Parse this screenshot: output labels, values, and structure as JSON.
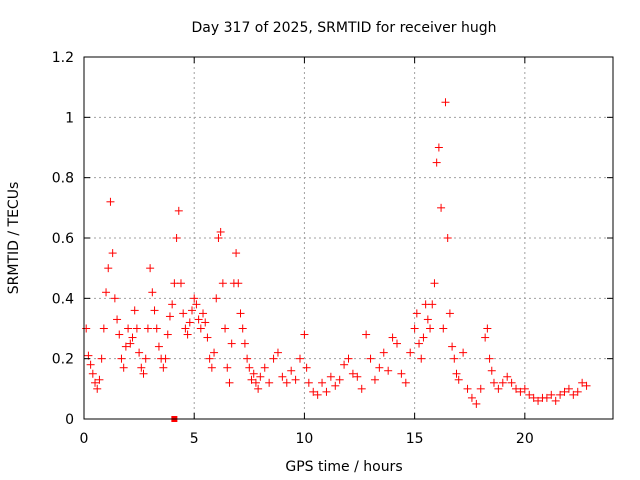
{
  "chart_data": {
    "type": "scatter",
    "title": "Day 317 of 2025, SRMTID for receiver hugh",
    "xlabel": "GPS time / hours",
    "ylabel": "SRMTID / TECUs",
    "xlim": [
      0,
      24
    ],
    "ylim": [
      0,
      1.2
    ],
    "xticks": [
      "0",
      "5",
      "10",
      "15",
      "20"
    ],
    "yticks": [
      "0",
      "0.2",
      "0.4",
      "0.6",
      "0.8",
      "1",
      "1.2"
    ],
    "grid": true,
    "marker": "plus",
    "color": "#ff0000",
    "series": [
      {
        "name": "SRMTID",
        "points": [
          [
            0.1,
            0.3
          ],
          [
            0.2,
            0.21
          ],
          [
            0.3,
            0.18
          ],
          [
            0.4,
            0.15
          ],
          [
            0.5,
            0.12
          ],
          [
            0.6,
            0.1
          ],
          [
            0.7,
            0.13
          ],
          [
            0.8,
            0.2
          ],
          [
            0.9,
            0.3
          ],
          [
            1.0,
            0.42
          ],
          [
            1.1,
            0.5
          ],
          [
            1.2,
            0.72
          ],
          [
            1.3,
            0.55
          ],
          [
            1.4,
            0.4
          ],
          [
            1.5,
            0.33
          ],
          [
            1.6,
            0.28
          ],
          [
            1.7,
            0.2
          ],
          [
            1.8,
            0.17
          ],
          [
            1.9,
            0.24
          ],
          [
            2.0,
            0.3
          ],
          [
            2.1,
            0.25
          ],
          [
            2.2,
            0.27
          ],
          [
            2.3,
            0.36
          ],
          [
            2.4,
            0.3
          ],
          [
            2.5,
            0.22
          ],
          [
            2.6,
            0.17
          ],
          [
            2.7,
            0.15
          ],
          [
            2.8,
            0.2
          ],
          [
            2.9,
            0.3
          ],
          [
            3.0,
            0.5
          ],
          [
            3.1,
            0.42
          ],
          [
            3.2,
            0.36
          ],
          [
            3.3,
            0.3
          ],
          [
            3.4,
            0.24
          ],
          [
            3.5,
            0.2
          ],
          [
            3.6,
            0.17
          ],
          [
            3.7,
            0.2
          ],
          [
            3.8,
            0.28
          ],
          [
            3.9,
            0.34
          ],
          [
            4.0,
            0.38
          ],
          [
            4.1,
            0.45
          ],
          [
            4.2,
            0.6
          ],
          [
            4.3,
            0.69
          ],
          [
            4.4,
            0.45
          ],
          [
            4.5,
            0.35
          ],
          [
            4.6,
            0.3
          ],
          [
            4.7,
            0.28
          ],
          [
            4.8,
            0.32
          ],
          [
            4.9,
            0.36
          ],
          [
            5.0,
            0.4
          ],
          [
            5.1,
            0.38
          ],
          [
            5.2,
            0.33
          ],
          [
            5.3,
            0.3
          ],
          [
            5.4,
            0.35
          ],
          [
            5.5,
            0.32
          ],
          [
            5.6,
            0.27
          ],
          [
            5.7,
            0.2
          ],
          [
            5.8,
            0.17
          ],
          [
            5.9,
            0.22
          ],
          [
            6.0,
            0.4
          ],
          [
            6.1,
            0.6
          ],
          [
            6.2,
            0.62
          ],
          [
            6.3,
            0.45
          ],
          [
            6.4,
            0.3
          ],
          [
            6.5,
            0.17
          ],
          [
            6.6,
            0.12
          ],
          [
            6.7,
            0.25
          ],
          [
            6.8,
            0.45
          ],
          [
            6.9,
            0.55
          ],
          [
            7.0,
            0.45
          ],
          [
            7.1,
            0.35
          ],
          [
            7.2,
            0.3
          ],
          [
            7.3,
            0.25
          ],
          [
            7.4,
            0.2
          ],
          [
            7.5,
            0.17
          ],
          [
            7.6,
            0.13
          ],
          [
            7.7,
            0.15
          ],
          [
            7.8,
            0.12
          ],
          [
            7.9,
            0.1
          ],
          [
            8.0,
            0.14
          ],
          [
            8.2,
            0.17
          ],
          [
            8.4,
            0.12
          ],
          [
            8.6,
            0.2
          ],
          [
            8.8,
            0.22
          ],
          [
            9.0,
            0.14
          ],
          [
            9.2,
            0.12
          ],
          [
            9.4,
            0.16
          ],
          [
            9.6,
            0.13
          ],
          [
            9.8,
            0.2
          ],
          [
            10.0,
            0.28
          ],
          [
            10.1,
            0.17
          ],
          [
            10.2,
            0.12
          ],
          [
            10.4,
            0.09
          ],
          [
            10.6,
            0.08
          ],
          [
            10.8,
            0.12
          ],
          [
            11.0,
            0.09
          ],
          [
            11.2,
            0.14
          ],
          [
            11.4,
            0.11
          ],
          [
            11.6,
            0.13
          ],
          [
            11.8,
            0.18
          ],
          [
            12.0,
            0.2
          ],
          [
            12.2,
            0.15
          ],
          [
            12.4,
            0.14
          ],
          [
            12.6,
            0.1
          ],
          [
            12.8,
            0.28
          ],
          [
            13.0,
            0.2
          ],
          [
            13.2,
            0.13
          ],
          [
            13.4,
            0.17
          ],
          [
            13.6,
            0.22
          ],
          [
            13.8,
            0.16
          ],
          [
            14.0,
            0.27
          ],
          [
            14.2,
            0.25
          ],
          [
            14.4,
            0.15
          ],
          [
            14.6,
            0.12
          ],
          [
            14.8,
            0.22
          ],
          [
            15.0,
            0.3
          ],
          [
            15.1,
            0.35
          ],
          [
            15.2,
            0.25
          ],
          [
            15.3,
            0.2
          ],
          [
            15.4,
            0.27
          ],
          [
            15.5,
            0.38
          ],
          [
            15.6,
            0.33
          ],
          [
            15.7,
            0.3
          ],
          [
            15.8,
            0.38
          ],
          [
            15.9,
            0.45
          ],
          [
            16.0,
            0.85
          ],
          [
            16.1,
            0.9
          ],
          [
            16.2,
            0.7
          ],
          [
            16.3,
            0.3
          ],
          [
            16.4,
            1.05
          ],
          [
            16.5,
            0.6
          ],
          [
            16.6,
            0.35
          ],
          [
            16.7,
            0.24
          ],
          [
            16.8,
            0.2
          ],
          [
            16.9,
            0.15
          ],
          [
            17.0,
            0.13
          ],
          [
            17.2,
            0.22
          ],
          [
            17.4,
            0.1
          ],
          [
            17.6,
            0.07
          ],
          [
            17.8,
            0.05
          ],
          [
            18.0,
            0.1
          ],
          [
            18.2,
            0.27
          ],
          [
            18.3,
            0.3
          ],
          [
            18.4,
            0.2
          ],
          [
            18.5,
            0.16
          ],
          [
            18.6,
            0.12
          ],
          [
            18.8,
            0.1
          ],
          [
            19.0,
            0.12
          ],
          [
            19.2,
            0.14
          ],
          [
            19.4,
            0.12
          ],
          [
            19.6,
            0.1
          ],
          [
            19.8,
            0.09
          ],
          [
            20.0,
            0.1
          ],
          [
            20.2,
            0.08
          ],
          [
            20.4,
            0.07
          ],
          [
            20.6,
            0.06
          ],
          [
            20.8,
            0.07
          ],
          [
            21.0,
            0.07
          ],
          [
            21.2,
            0.08
          ],
          [
            21.4,
            0.06
          ],
          [
            21.6,
            0.08
          ],
          [
            21.8,
            0.09
          ],
          [
            22.0,
            0.1
          ],
          [
            22.2,
            0.08
          ],
          [
            22.4,
            0.09
          ],
          [
            22.6,
            0.12
          ],
          [
            22.8,
            0.11
          ]
        ]
      }
    ],
    "extra_marker": {
      "x": 4.1,
      "y": 0.0
    }
  }
}
